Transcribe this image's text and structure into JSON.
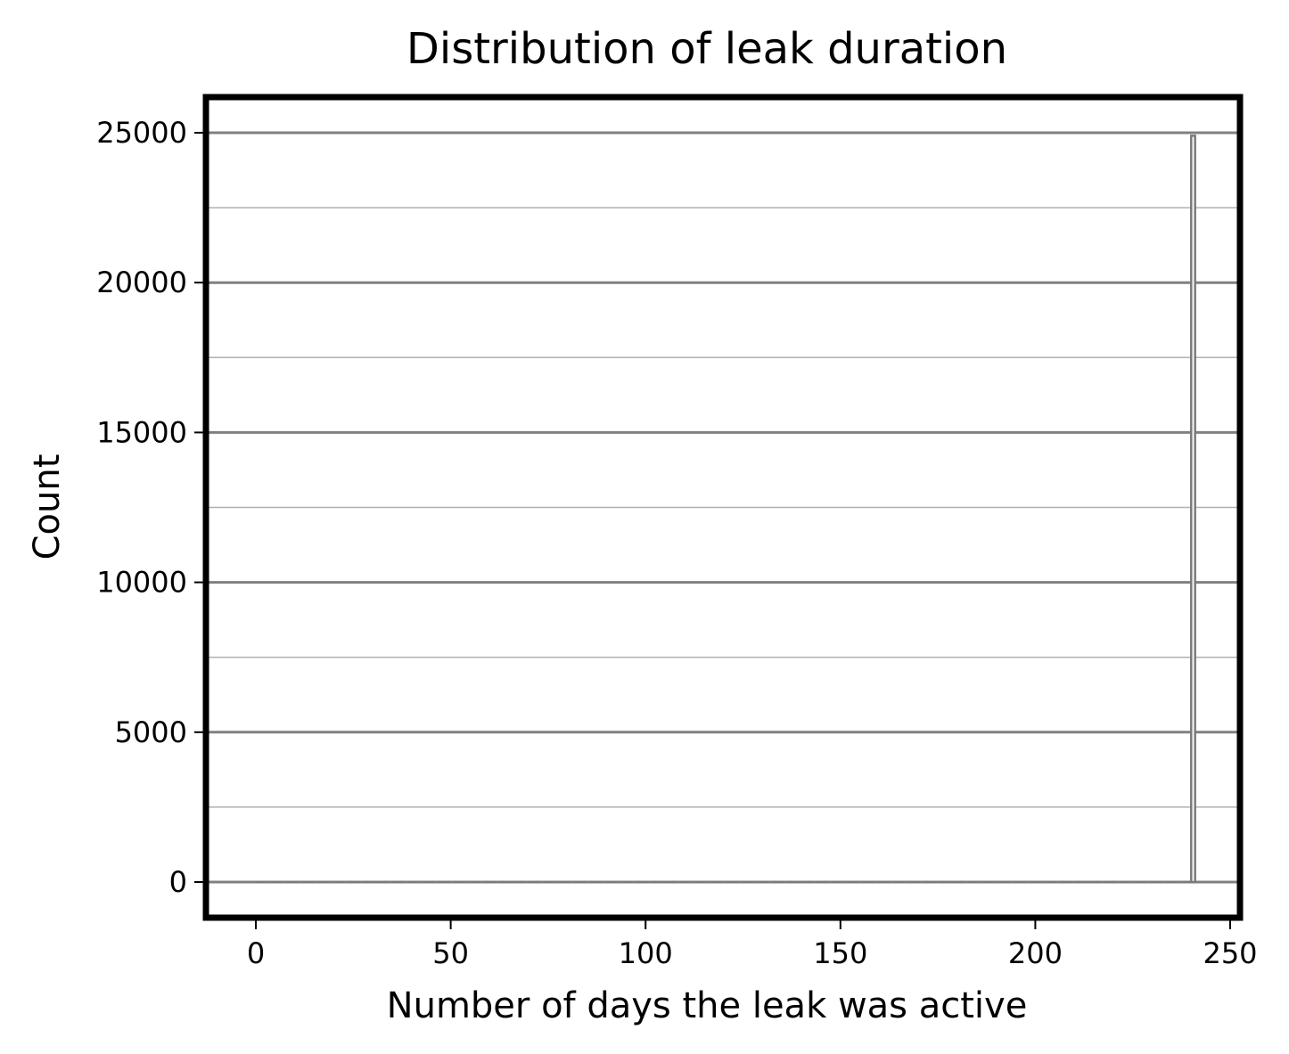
{
  "chart_data": {
    "type": "bar",
    "title": "Distribution of leak duration",
    "xlabel": "Number of days the leak was active",
    "ylabel": "Count",
    "xlim": [
      -13,
      252
    ],
    "ylim": [
      -1250,
      26200
    ],
    "x_ticks": [
      0,
      50,
      100,
      150,
      200,
      250
    ],
    "y_ticks": [
      0,
      5000,
      10000,
      15000,
      20000,
      25000
    ],
    "y_minor_ticks": [
      2500,
      7500,
      12500,
      17500,
      22500
    ],
    "grid": true,
    "legend": "none",
    "bin_width": 1,
    "bins": [
      {
        "x": 0,
        "count": 0
      },
      {
        "x": 1,
        "count": 0
      },
      {
        "x": 239,
        "count": 0
      },
      {
        "x": 240,
        "count": 24900
      }
    ],
    "colors": {
      "bar": "#7a7a7a",
      "major_grid": "#808080",
      "minor_grid": "#b0b0b0",
      "frame": "#000000"
    }
  }
}
